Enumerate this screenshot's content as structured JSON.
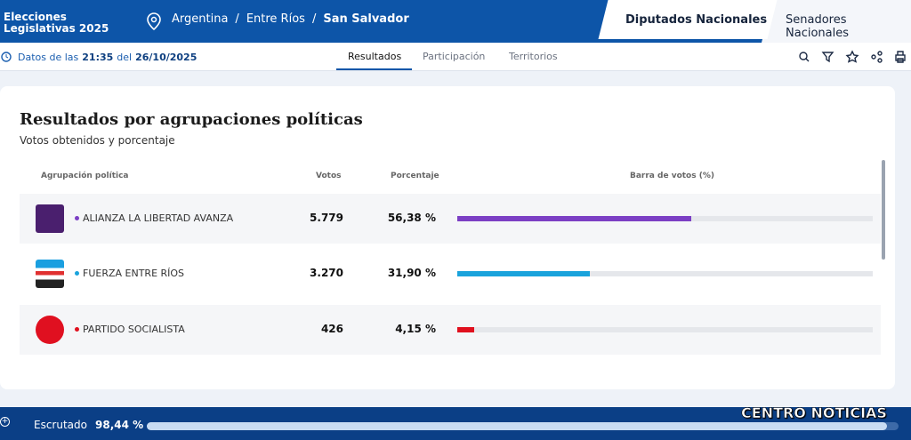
{
  "header": {
    "brand": [
      "Elecciones",
      "Legislativas 2025"
    ],
    "breadcrumb": [
      "Argentina",
      "Entre Ríos",
      "San Salvador"
    ],
    "separator": "/",
    "tabs": [
      "Diputados Nacionales",
      "Senadores Nacionales"
    ]
  },
  "toolbar": {
    "datetime": [
      "Datos de las",
      "21:35",
      "del",
      "26/10/2025"
    ],
    "tabs": [
      "Resultados",
      "Participación",
      "Territorios"
    ]
  },
  "card": {
    "title": "Resultados por agrupaciones políticas",
    "subtitle": "Votos obtenidos y porcentaje",
    "columns": [
      "Agrupación política",
      "Votos",
      "Porcentaje",
      "Barra de votos (%)"
    ],
    "bar_range": [
      0,
      100
    ],
    "rows": [
      {
        "name": "ALIANZA LA LIBERTAD AVANZA",
        "votes": {
          "value": 5779,
          "label": "5.779"
        },
        "percent": {
          "value": 56.38,
          "label": "56,38 %"
        },
        "color": "#7b3fc4"
      },
      {
        "name": "FUERZA ENTRE RÍOS",
        "votes": {
          "value": 3270,
          "label": "3.270"
        },
        "percent": {
          "value": 31.9,
          "label": "31,90 %"
        },
        "color": "#1aa3dc"
      },
      {
        "name": "PARTIDO SOCIALISTA",
        "votes": {
          "value": 426,
          "label": "426"
        },
        "percent": {
          "value": 4.15,
          "label": "4,15 %"
        },
        "color": "#e0101e"
      }
    ]
  },
  "footer": {
    "label": "Escrutado",
    "progress": {
      "value": 98.44,
      "label": "98,44 %"
    },
    "watermark": "CENTRO NOTICIAS"
  }
}
